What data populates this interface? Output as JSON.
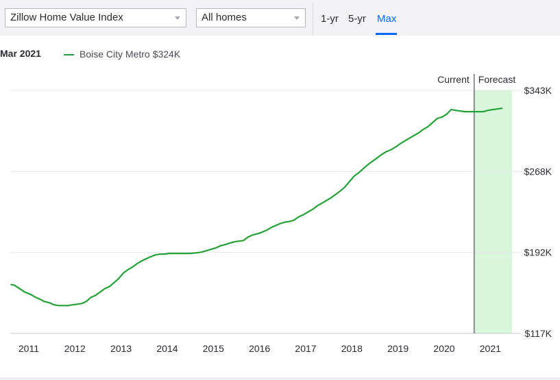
{
  "controls": {
    "metric_select": "Zillow Home Value Index",
    "home_type_select": "All homes",
    "range_tabs": [
      {
        "label": "1-yr",
        "active": false
      },
      {
        "label": "5-yr",
        "active": false
      },
      {
        "label": "Max",
        "active": true
      }
    ]
  },
  "legend": {
    "date": "Mar 2021",
    "series_name": "Boise City Metro",
    "series_value": "$324K"
  },
  "colors": {
    "series": "#23a136",
    "forecast_fill": "#d9f5dc",
    "active_tab": "#006aff"
  },
  "chart_data": {
    "type": "line",
    "region_labels": {
      "current": "Current",
      "forecast": "Forecast"
    },
    "x_ticks": [
      "2011",
      "2012",
      "2013",
      "2014",
      "2015",
      "2016",
      "2017",
      "2018",
      "2019",
      "2020",
      "2021"
    ],
    "y_ticks": [
      "$343K",
      "$268K",
      "$192K",
      "$117K"
    ],
    "xlim": [
      2010.6,
      2021.47
    ],
    "ylim": [
      117,
      343
    ],
    "forecast_start": 2020.65,
    "grid": true,
    "legend_position": "top-left",
    "series": [
      {
        "name": "Boise City Metro",
        "points": [
          [
            2010.62,
            162.4
          ],
          [
            2010.69,
            161.8
          ],
          [
            2010.78,
            159.3
          ],
          [
            2010.91,
            155.6
          ],
          [
            2011.05,
            153.1
          ],
          [
            2011.15,
            150.6
          ],
          [
            2011.25,
            148.7
          ],
          [
            2011.33,
            146.8
          ],
          [
            2011.45,
            145.5
          ],
          [
            2011.55,
            143.6
          ],
          [
            2011.65,
            142.9
          ],
          [
            2011.75,
            142.9
          ],
          [
            2011.85,
            142.9
          ],
          [
            2011.95,
            143.6
          ],
          [
            2012.05,
            144.2
          ],
          [
            2012.15,
            144.9
          ],
          [
            2012.25,
            146.8
          ],
          [
            2012.35,
            150.6
          ],
          [
            2012.45,
            152.5
          ],
          [
            2012.55,
            155.6
          ],
          [
            2012.65,
            158.7
          ],
          [
            2012.75,
            160.6
          ],
          [
            2012.85,
            164.3
          ],
          [
            2012.95,
            168.1
          ],
          [
            2013.05,
            173.2
          ],
          [
            2013.15,
            176.3
          ],
          [
            2013.25,
            178.8
          ],
          [
            2013.35,
            182.0
          ],
          [
            2013.45,
            184.5
          ],
          [
            2013.6,
            187.6
          ],
          [
            2013.75,
            190.1
          ],
          [
            2013.85,
            190.8
          ],
          [
            2013.95,
            190.8
          ],
          [
            2014.05,
            191.4
          ],
          [
            2014.15,
            191.4
          ],
          [
            2014.3,
            191.4
          ],
          [
            2014.5,
            191.4
          ],
          [
            2014.65,
            192.0
          ],
          [
            2014.75,
            192.7
          ],
          [
            2014.85,
            193.9
          ],
          [
            2014.95,
            195.2
          ],
          [
            2015.05,
            196.5
          ],
          [
            2015.15,
            198.4
          ],
          [
            2015.25,
            199.6
          ],
          [
            2015.35,
            200.9
          ],
          [
            2015.45,
            202.2
          ],
          [
            2015.55,
            202.8
          ],
          [
            2015.65,
            203.4
          ],
          [
            2015.75,
            206.6
          ],
          [
            2015.85,
            208.5
          ],
          [
            2015.95,
            209.7
          ],
          [
            2016.05,
            211.0
          ],
          [
            2016.15,
            212.9
          ],
          [
            2016.25,
            215.4
          ],
          [
            2016.35,
            217.3
          ],
          [
            2016.45,
            219.2
          ],
          [
            2016.55,
            220.5
          ],
          [
            2016.65,
            221.1
          ],
          [
            2016.75,
            222.4
          ],
          [
            2016.85,
            225.5
          ],
          [
            2016.95,
            227.4
          ],
          [
            2017.05,
            229.9
          ],
          [
            2017.15,
            232.4
          ],
          [
            2017.25,
            235.6
          ],
          [
            2017.35,
            238.1
          ],
          [
            2017.45,
            240.6
          ],
          [
            2017.55,
            243.2
          ],
          [
            2017.65,
            246.3
          ],
          [
            2017.75,
            249.5
          ],
          [
            2017.85,
            253.2
          ],
          [
            2017.95,
            258.3
          ],
          [
            2018.05,
            263.3
          ],
          [
            2018.15,
            266.5
          ],
          [
            2018.25,
            270.3
          ],
          [
            2018.35,
            274.0
          ],
          [
            2018.45,
            277.2
          ],
          [
            2018.55,
            280.3
          ],
          [
            2018.65,
            283.5
          ],
          [
            2018.75,
            286.0
          ],
          [
            2018.85,
            287.9
          ],
          [
            2018.95,
            290.4
          ],
          [
            2019.05,
            293.5
          ],
          [
            2019.15,
            296.1
          ],
          [
            2019.25,
            298.6
          ],
          [
            2019.35,
            301.1
          ],
          [
            2019.45,
            303.6
          ],
          [
            2019.55,
            306.8
          ],
          [
            2019.65,
            309.3
          ],
          [
            2019.75,
            313.1
          ],
          [
            2019.85,
            316.9
          ],
          [
            2019.95,
            318.1
          ],
          [
            2020.05,
            320.7
          ],
          [
            2020.15,
            325.1
          ],
          [
            2020.25,
            324.4
          ],
          [
            2020.35,
            323.8
          ],
          [
            2020.45,
            323.2
          ],
          [
            2020.55,
            323.2
          ],
          [
            2020.65,
            323.2
          ],
          [
            2020.75,
            323.2
          ],
          [
            2020.85,
            323.2
          ],
          [
            2020.95,
            324.4
          ],
          [
            2021.05,
            325.1
          ],
          [
            2021.15,
            325.7
          ],
          [
            2021.25,
            326.3
          ]
        ]
      }
    ]
  }
}
